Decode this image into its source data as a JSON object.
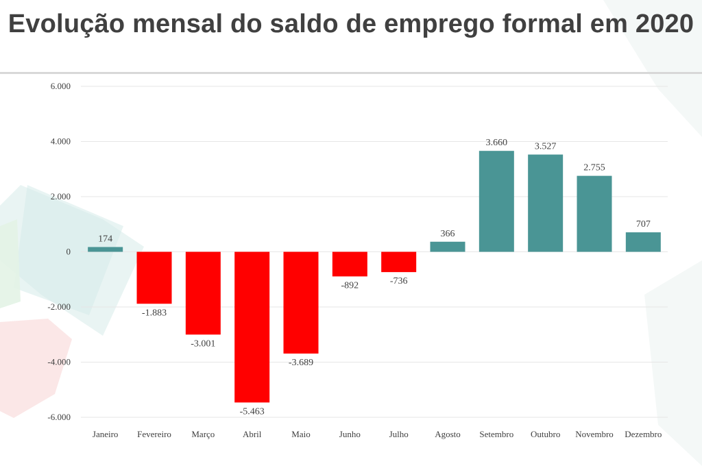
{
  "title": "Evolução mensal do saldo de emprego formal em 2020",
  "colors": {
    "positive": "#4a9595",
    "negative": "#ff0000",
    "grid": "#e6e6e6",
    "text": "#404040"
  },
  "chart_data": {
    "type": "bar",
    "title": "",
    "xlabel": "",
    "ylabel": "",
    "categories": [
      "Janeiro",
      "Fevereiro",
      "Março",
      "Abril",
      "Maio",
      "Junho",
      "Julho",
      "Agosto",
      "Setembro",
      "Outubro",
      "Novembro",
      "Dezembro"
    ],
    "values": [
      174,
      -1883,
      -3001,
      -5463,
      -3689,
      -892,
      -736,
      366,
      3660,
      3527,
      2755,
      707
    ],
    "value_labels": [
      "174",
      "-1.883",
      "-3.001",
      "-5.463",
      "-3.689",
      "-892",
      "-736",
      "366",
      "3.660",
      "3.527",
      "2.755",
      "707"
    ],
    "ylim": [
      -6000,
      6000
    ],
    "yticks": [
      6000,
      4000,
      2000,
      0,
      -2000,
      -4000,
      -6000
    ],
    "ytick_labels": [
      "6.000",
      "4.000",
      "2.000",
      "0",
      "-2.000",
      "-4.000",
      "-6.000"
    ],
    "grid": true,
    "legend": "none"
  }
}
